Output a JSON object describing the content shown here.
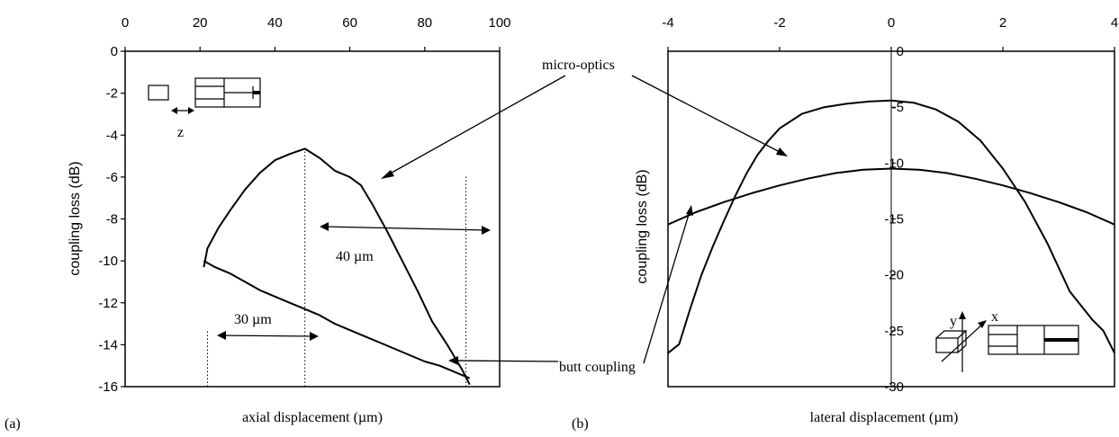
{
  "chart_data": [
    {
      "panel_label": "(a)",
      "type": "line",
      "xlabel": "axial displacement (µm)",
      "ylabel": "coupling loss (dB)",
      "xlim": [
        0,
        100
      ],
      "ylim": [
        -16,
        0
      ],
      "xticks": [
        "0",
        "20",
        "40",
        "60",
        "80",
        "100"
      ],
      "yticks": [
        "0",
        "-2",
        "-4",
        "-6",
        "-8",
        "-10",
        "-12",
        "-14",
        "-16"
      ],
      "series": [
        {
          "name": "micro-optics",
          "x": [
            21,
            22,
            25,
            28,
            32,
            36,
            40,
            44,
            48,
            52,
            56,
            60,
            63,
            66,
            70,
            74,
            78,
            82,
            86,
            90,
            92
          ],
          "y": [
            -10.3,
            -9.4,
            -8.4,
            -7.6,
            -6.6,
            -5.8,
            -5.2,
            -4.9,
            -4.65,
            -5.1,
            -5.7,
            -6.0,
            -6.4,
            -7.3,
            -8.6,
            -10.0,
            -11.4,
            -12.9,
            -14.0,
            -15.2,
            -15.9
          ]
        },
        {
          "name": "butt coupling",
          "x": [
            21,
            24,
            28,
            32,
            36,
            40,
            44,
            48,
            52,
            56,
            60,
            64,
            68,
            72,
            76,
            80,
            84,
            88,
            92
          ],
          "y": [
            -10.0,
            -10.3,
            -10.6,
            -11.0,
            -11.4,
            -11.7,
            -12.0,
            -12.3,
            -12.6,
            -13.0,
            -13.3,
            -13.6,
            -13.9,
            -14.2,
            -14.5,
            -14.8,
            -15.0,
            -15.3,
            -15.6
          ]
        }
      ],
      "annotations": {
        "span_40": "40 µm",
        "span_30": "30 µm",
        "micro_optics_label": "micro-optics",
        "butt_coupling_label": "butt coupling",
        "inset_axis_label": "z"
      }
    },
    {
      "panel_label": "(b)",
      "type": "line",
      "xlabel": "lateral displacement (µm)",
      "ylabel": "coupling loss (dB)",
      "xlim": [
        -4,
        4
      ],
      "ylim": [
        -30,
        0
      ],
      "xticks": [
        "-4",
        "-2",
        "0",
        "2",
        "4"
      ],
      "yticks": [
        "0",
        "-5",
        "-10",
        "-15",
        "-20",
        "-25",
        "-30"
      ],
      "series": [
        {
          "name": "micro-optics",
          "x": [
            -4.0,
            -3.8,
            -3.6,
            -3.4,
            -3.2,
            -3.0,
            -2.8,
            -2.6,
            -2.4,
            -2.2,
            -2.0,
            -1.6,
            -1.2,
            -0.8,
            -0.4,
            0.0,
            0.4,
            0.8,
            1.2,
            1.6,
            2.0,
            2.4,
            2.8,
            3.2,
            3.6,
            3.8,
            4.0
          ],
          "y": [
            -27.0,
            -26.2,
            -23.0,
            -20.0,
            -17.5,
            -15.2,
            -13.0,
            -11.0,
            -9.3,
            -8.0,
            -6.9,
            -5.6,
            -5.0,
            -4.7,
            -4.5,
            -4.4,
            -4.6,
            -5.2,
            -6.3,
            -8.0,
            -10.5,
            -13.5,
            -17.2,
            -21.5,
            -24.0,
            -25.0,
            -27.0
          ]
        },
        {
          "name": "butt coupling",
          "x": [
            -4.0,
            -3.5,
            -3.0,
            -2.5,
            -2.0,
            -1.5,
            -1.0,
            -0.5,
            0.0,
            0.5,
            1.0,
            1.5,
            2.0,
            2.5,
            3.0,
            3.5,
            4.0
          ],
          "y": [
            -15.5,
            -14.4,
            -13.5,
            -12.7,
            -12.0,
            -11.4,
            -10.9,
            -10.6,
            -10.5,
            -10.6,
            -10.9,
            -11.4,
            -12.0,
            -12.7,
            -13.5,
            -14.4,
            -15.5
          ]
        }
      ],
      "annotations": {
        "micro_optics_label": "micro-optics",
        "butt_coupling_label": "butt coupling",
        "inset_y": "y",
        "inset_x": "x"
      }
    }
  ]
}
